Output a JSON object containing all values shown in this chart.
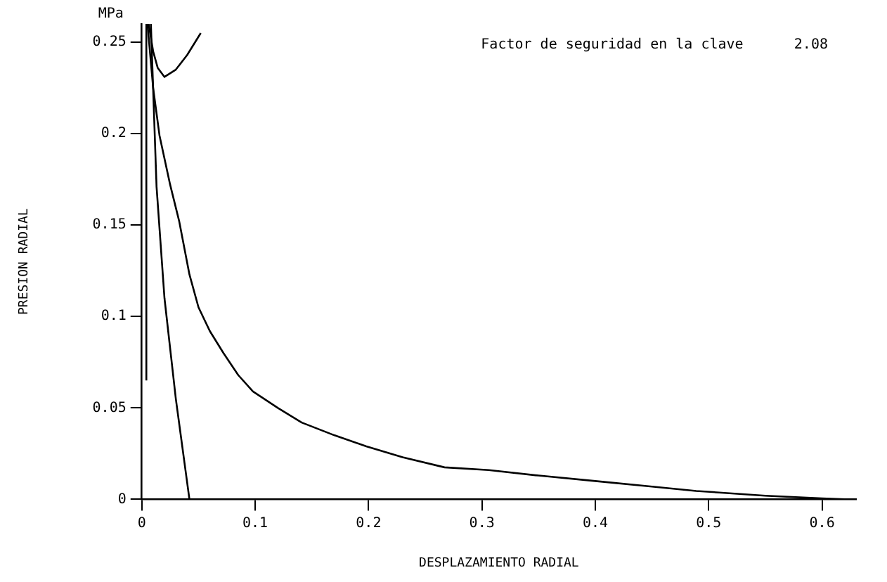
{
  "chart_data": {
    "type": "line",
    "xlabel": "DESPLAZAMIENTO RADIAL",
    "ylabel": "PRESION RADIAL",
    "annotations": [
      "MPa",
      "Factor de seguridad en la clave      2.08"
    ],
    "series": [
      {
        "color": "#000000",
        "x": [
          0.005,
          0.01,
          0.0156,
          0.025,
          0.033,
          0.042,
          0.05,
          0.06,
          0.072,
          0.085,
          0.098,
          0.12,
          0.141,
          0.17,
          0.198,
          0.23,
          0.267,
          0.306,
          0.35,
          0.4,
          0.45,
          0.489,
          0.55,
          0.6,
          0.62
        ],
        "values": [
          0.26,
          0.225,
          0.199,
          0.172,
          0.152,
          0.123,
          0.105,
          0.092,
          0.08,
          0.068,
          0.059,
          0.05,
          0.042,
          0.035,
          0.029,
          0.023,
          0.0175,
          0.016,
          0.013,
          0.01,
          0.007,
          0.0046,
          0.002,
          0.0005,
          0
        ]
      },
      {
        "color": "#000000",
        "x": [
          0.008,
          0.013,
          0.02,
          0.03,
          0.042
        ],
        "values": [
          0.26,
          0.171,
          0.11,
          0.055,
          0
        ]
      },
      {
        "color": "#000000",
        "x": [
          0.006,
          0.01,
          0.014,
          0.02,
          0.03,
          0.04,
          0.052
        ],
        "values": [
          0.26,
          0.245,
          0.236,
          0.231,
          0.235,
          0.243,
          0.255
        ]
      },
      {
        "color": "#000000",
        "x": [
          0.004,
          0.004
        ],
        "values": [
          0.065,
          0.26
        ]
      }
    ],
    "xlim": [
      0,
      0.63
    ],
    "xticks": [
      0,
      0.1,
      0.2,
      0.3,
      0.4,
      0.5,
      0.6
    ],
    "ylim": [
      0,
      0.26
    ],
    "yticks": [
      0,
      0.05,
      0.1,
      0.15,
      0.2,
      0.25
    ],
    "grid": false,
    "legend": false,
    "marker": "none",
    "line_style": "solid"
  }
}
